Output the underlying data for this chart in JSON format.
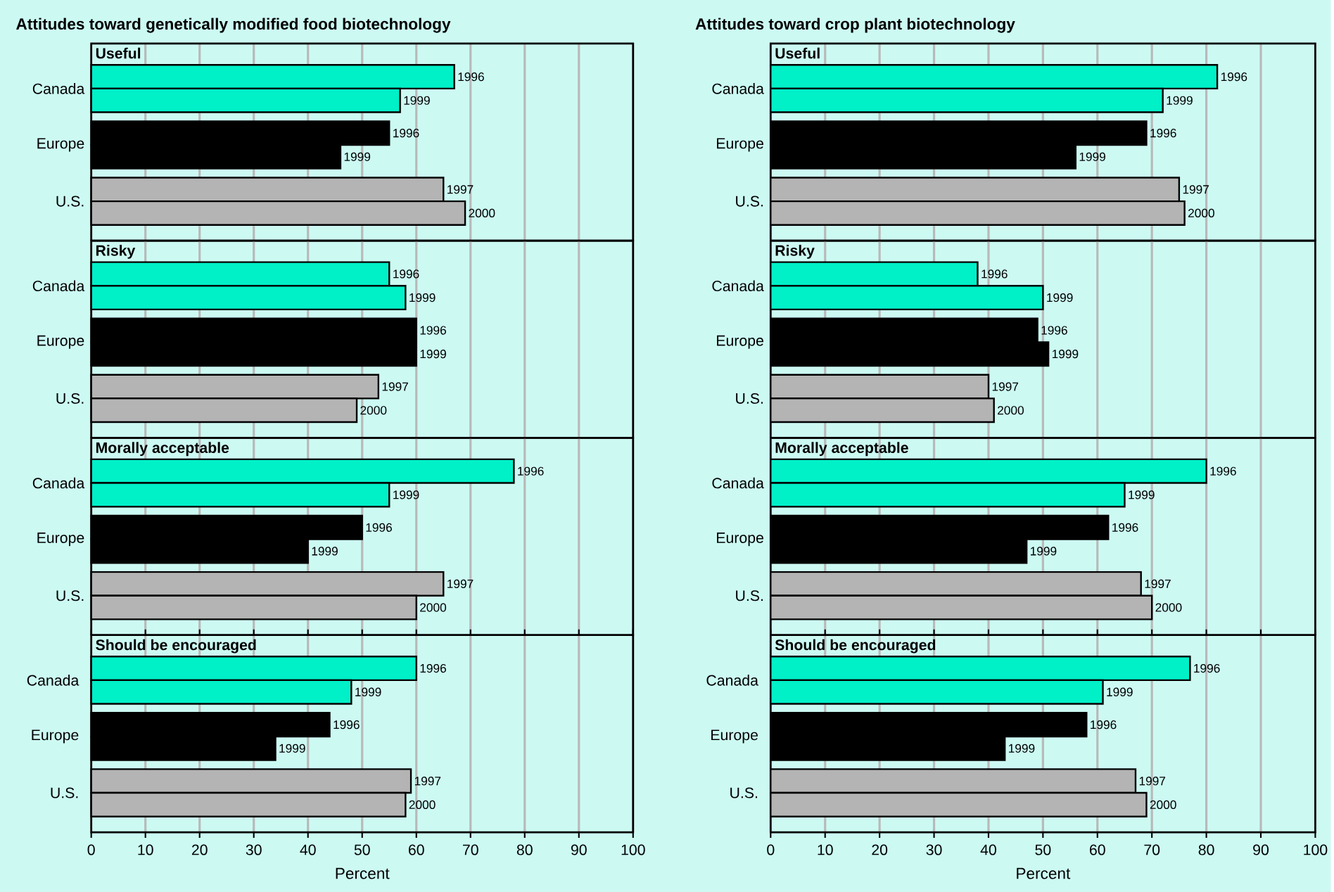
{
  "chart_data": [
    {
      "type": "bar",
      "orientation": "horizontal",
      "title": "Attitudes toward genetically modified food biotechnology",
      "subtitle": "Useful",
      "categories": [
        "Canada",
        "Europe",
        "U.S."
      ],
      "series": [
        {
          "name": "1996",
          "colors": [
            "#00f0c8",
            "#000000",
            null
          ],
          "values": [
            67,
            55,
            null
          ]
        },
        {
          "name": "1997",
          "colors": [
            null,
            null,
            "#b4b4b4"
          ],
          "values": [
            null,
            null,
            65
          ]
        },
        {
          "name": "1999",
          "colors": [
            "#00f0c8",
            "#000000",
            null
          ],
          "values": [
            57,
            46,
            null
          ]
        },
        {
          "name": "2000",
          "colors": [
            null,
            null,
            "#b4b4b4"
          ],
          "values": [
            null,
            null,
            69
          ]
        }
      ],
      "xlim": [
        0,
        100
      ],
      "xticks": [
        0,
        10,
        20,
        30,
        40,
        50,
        60,
        70,
        80,
        90,
        100
      ],
      "grid": "x",
      "tick_labels": "y"
    },
    {
      "type": "bar",
      "orientation": "horizontal",
      "subtitle": "Risky",
      "categories": [
        "Canada",
        "Europe",
        "U.S."
      ],
      "series": [
        {
          "name": "1996",
          "colors": [
            "#00f0c8",
            "#000000",
            null
          ],
          "values": [
            55,
            60,
            null
          ]
        },
        {
          "name": "1997",
          "colors": [
            null,
            null,
            "#b4b4b4"
          ],
          "values": [
            null,
            null,
            53
          ]
        },
        {
          "name": "1999",
          "colors": [
            "#00f0c8",
            "#000000",
            null
          ],
          "values": [
            58,
            60,
            null
          ]
        },
        {
          "name": "2000",
          "colors": [
            null,
            null,
            "#b4b4b4"
          ],
          "values": [
            null,
            null,
            49
          ]
        }
      ],
      "xlim": [
        0,
        100
      ],
      "xticks": [
        0,
        10,
        20,
        30,
        40,
        50,
        60,
        70,
        80,
        90,
        100
      ],
      "grid": "x",
      "tick_labels": "y"
    },
    {
      "type": "bar",
      "orientation": "horizontal",
      "subtitle": "Morally acceptable",
      "categories": [
        "Canada",
        "Europe",
        "U.S."
      ],
      "series": [
        {
          "name": "1996",
          "colors": [
            "#00f0c8",
            "#000000",
            null
          ],
          "values": [
            78,
            50,
            null
          ]
        },
        {
          "name": "1997",
          "colors": [
            null,
            null,
            "#b4b4b4"
          ],
          "values": [
            null,
            null,
            65
          ]
        },
        {
          "name": "1999",
          "colors": [
            "#00f0c8",
            "#000000",
            null
          ],
          "values": [
            55,
            40,
            null
          ]
        },
        {
          "name": "2000",
          "colors": [
            null,
            null,
            "#b4b4b4"
          ],
          "values": [
            null,
            null,
            60
          ]
        }
      ],
      "xlim": [
        0,
        100
      ],
      "xticks": [
        0,
        10,
        20,
        30,
        40,
        50,
        60,
        70,
        80,
        90,
        100
      ],
      "grid": "x",
      "tick_labels": "y"
    },
    {
      "type": "bar",
      "orientation": "horizontal",
      "subtitle": "Should be encouraged",
      "xlabel": "Percent",
      "categories": [
        "Canada",
        "Europe",
        "U.S."
      ],
      "series": [
        {
          "name": "1996",
          "colors": [
            "#00f0c8",
            "#000000",
            null
          ],
          "values": [
            60,
            44,
            null
          ]
        },
        {
          "name": "1997",
          "colors": [
            null,
            null,
            "#b4b4b4"
          ],
          "values": [
            null,
            null,
            59
          ]
        },
        {
          "name": "1999",
          "colors": [
            "#00f0c8",
            "#000000",
            null
          ],
          "values": [
            48,
            34,
            null
          ]
        },
        {
          "name": "2000",
          "colors": [
            null,
            null,
            "#b4b4b4"
          ],
          "values": [
            null,
            null,
            58
          ]
        }
      ],
      "xlim": [
        0,
        100
      ],
      "xticks": [
        0,
        10,
        20,
        30,
        40,
        50,
        60,
        70,
        80,
        90,
        100
      ],
      "grid": "x"
    },
    {
      "type": "bar",
      "orientation": "horizontal",
      "title": "Attitudes toward crop plant biotechnology",
      "subtitle": "Useful",
      "categories": [
        "Canada",
        "Europe",
        "U.S."
      ],
      "series": [
        {
          "name": "1996",
          "colors": [
            "#00f0c8",
            "#000000",
            null
          ],
          "values": [
            82,
            69,
            null
          ]
        },
        {
          "name": "1997",
          "colors": [
            null,
            null,
            "#b4b4b4"
          ],
          "values": [
            null,
            null,
            75
          ]
        },
        {
          "name": "1999",
          "colors": [
            "#00f0c8",
            "#000000",
            null
          ],
          "values": [
            72,
            56,
            null
          ]
        },
        {
          "name": "2000",
          "colors": [
            null,
            null,
            "#b4b4b4"
          ],
          "values": [
            null,
            null,
            76
          ]
        }
      ],
      "xlim": [
        0,
        100
      ],
      "xticks": [
        0,
        10,
        20,
        30,
        40,
        50,
        60,
        70,
        80,
        90,
        100
      ],
      "grid": "x",
      "tick_labels": "y"
    },
    {
      "type": "bar",
      "orientation": "horizontal",
      "subtitle": "Risky",
      "categories": [
        "Canada",
        "Europe",
        "U.S."
      ],
      "series": [
        {
          "name": "1996",
          "colors": [
            "#00f0c8",
            "#000000",
            null
          ],
          "values": [
            38,
            49,
            null
          ]
        },
        {
          "name": "1997",
          "colors": [
            null,
            null,
            "#b4b4b4"
          ],
          "values": [
            null,
            null,
            40
          ]
        },
        {
          "name": "1999",
          "colors": [
            "#00f0c8",
            "#000000",
            null
          ],
          "values": [
            50,
            51,
            null
          ]
        },
        {
          "name": "2000",
          "colors": [
            null,
            null,
            "#b4b4b4"
          ],
          "values": [
            null,
            null,
            41
          ]
        }
      ],
      "xlim": [
        0,
        100
      ],
      "xticks": [
        0,
        10,
        20,
        30,
        40,
        50,
        60,
        70,
        80,
        90,
        100
      ],
      "grid": "x",
      "tick_labels": "y"
    },
    {
      "type": "bar",
      "orientation": "horizontal",
      "subtitle": "Morally acceptable",
      "categories": [
        "Canada",
        "Europe",
        "U.S."
      ],
      "series": [
        {
          "name": "1996",
          "colors": [
            "#00f0c8",
            "#000000",
            null
          ],
          "values": [
            80,
            62,
            null
          ]
        },
        {
          "name": "1997",
          "colors": [
            null,
            null,
            "#b4b4b4"
          ],
          "values": [
            null,
            null,
            68
          ]
        },
        {
          "name": "1999",
          "colors": [
            "#00f0c8",
            "#000000",
            null
          ],
          "values": [
            65,
            47,
            null
          ]
        },
        {
          "name": "2000",
          "colors": [
            null,
            null,
            "#b4b4b4"
          ],
          "values": [
            null,
            null,
            70
          ]
        }
      ],
      "xlim": [
        0,
        100
      ],
      "xticks": [
        0,
        10,
        20,
        30,
        40,
        50,
        60,
        70,
        80,
        90,
        100
      ],
      "grid": "x",
      "tick_labels": "y"
    },
    {
      "type": "bar",
      "orientation": "horizontal",
      "subtitle": "Should be encouraged",
      "xlabel": "Percent",
      "categories": [
        "Canada",
        "Europe",
        "U.S."
      ],
      "series": [
        {
          "name": "1996",
          "colors": [
            "#00f0c8",
            "#000000",
            null
          ],
          "values": [
            77,
            58,
            null
          ]
        },
        {
          "name": "1997",
          "colors": [
            null,
            null,
            "#b4b4b4"
          ],
          "values": [
            null,
            null,
            67
          ]
        },
        {
          "name": "1999",
          "colors": [
            "#00f0c8",
            "#000000",
            null
          ],
          "values": [
            61,
            43,
            null
          ]
        },
        {
          "name": "2000",
          "colors": [
            null,
            null,
            "#b4b4b4"
          ],
          "values": [
            null,
            null,
            69
          ]
        }
      ],
      "xlim": [
        0,
        100
      ],
      "xticks": [
        0,
        10,
        20,
        30,
        40,
        50,
        60,
        70,
        80,
        90,
        100
      ],
      "grid": "x"
    }
  ]
}
